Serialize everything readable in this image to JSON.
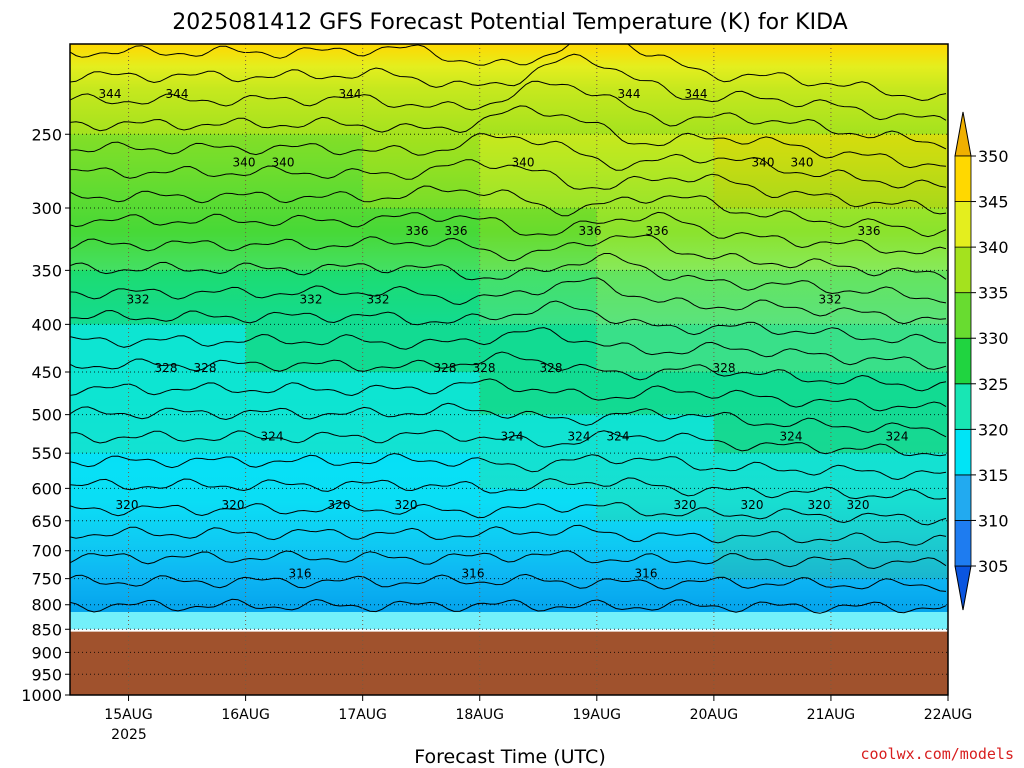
{
  "chart_data": {
    "type": "heatmap",
    "title": "2025081412 GFS Forecast Potential Temperature (K) for KIDA",
    "xlabel": "Forecast Time (UTC)",
    "ylabel": "",
    "x_ticks": [
      "15AUG",
      "16AUG",
      "17AUG",
      "18AUG",
      "19AUG",
      "20AUG",
      "21AUG",
      "22AUG"
    ],
    "x_tick_year": "2025",
    "x_range": [
      "2025-08-14 12Z",
      "2025-08-22 00Z"
    ],
    "y_ticks": [
      250,
      300,
      350,
      400,
      450,
      500,
      550,
      600,
      650,
      700,
      750,
      800,
      850,
      900,
      950,
      1000
    ],
    "y_range_hpa": [
      1000,
      200
    ],
    "y_scale": "log-pressure",
    "ground_level_hpa": 855,
    "colorbar": {
      "levels": [
        305,
        310,
        315,
        320,
        325,
        330,
        335,
        340,
        345,
        350
      ],
      "colors": [
        "#0a55e0",
        "#1e7cf0",
        "#22aaf0",
        "#00e4f6",
        "#18e6b4",
        "#20d440",
        "#68dc30",
        "#a4e21e",
        "#e4ee1e",
        "#ffd800",
        "#f0b000"
      ]
    },
    "series": [
      {
        "time_days": 0.0,
        "values": [
          334,
          330,
          327,
          324,
          321,
          320,
          319,
          318,
          318,
          318,
          317,
          312
        ]
      },
      {
        "time_days": 1.0,
        "values": [
          334,
          330,
          326,
          324,
          321,
          320,
          319,
          318,
          318,
          318,
          316,
          309
        ]
      },
      {
        "time_days": 2.0,
        "values": [
          333,
          331,
          328,
          325,
          322,
          320,
          319,
          318,
          318,
          317,
          315,
          308
        ]
      },
      {
        "time_days": 3.0,
        "values": [
          338,
          332,
          328,
          325,
          322,
          320,
          319,
          318,
          318,
          318,
          316,
          309
        ]
      },
      {
        "time_days": 4.0,
        "values": [
          342,
          338,
          334,
          329,
          325,
          322,
          320,
          318,
          318,
          318,
          317,
          311
        ]
      },
      {
        "time_days": 5.0,
        "values": [
          344,
          340,
          335,
          331,
          327,
          324,
          322,
          320,
          319,
          319,
          318,
          314
        ]
      },
      {
        "time_days": 6.0,
        "values": [
          345,
          341,
          336,
          332,
          328,
          325,
          322,
          320,
          320,
          320,
          319,
          315
        ]
      },
      {
        "time_days": 7.0,
        "values": [
          345,
          341,
          336,
          332,
          328,
          325,
          322,
          320,
          320,
          320,
          319,
          316
        ]
      }
    ],
    "series_pressure_hpa": [
      250,
      300,
      350,
      400,
      450,
      500,
      550,
      600,
      650,
      700,
      750,
      850
    ],
    "contour_interval_K": 2,
    "contour_labels": [
      "344",
      "340",
      "336",
      "344",
      "340",
      "344",
      "344",
      "340",
      "344",
      "336",
      "340",
      "336",
      "336",
      "340",
      "332",
      "332",
      "328",
      "336",
      "332",
      "328",
      "332",
      "328",
      "328",
      "324",
      "324",
      "328",
      "324",
      "324",
      "328",
      "320",
      "324",
      "320",
      "320",
      "320",
      "320",
      "324",
      "320",
      "320",
      "316",
      "316",
      "316",
      "320"
    ]
  },
  "credit": "coolwx.com/models",
  "colors": {
    "ground": "#a0522d",
    "frame": "#000000",
    "credit": "#d81e1e"
  }
}
